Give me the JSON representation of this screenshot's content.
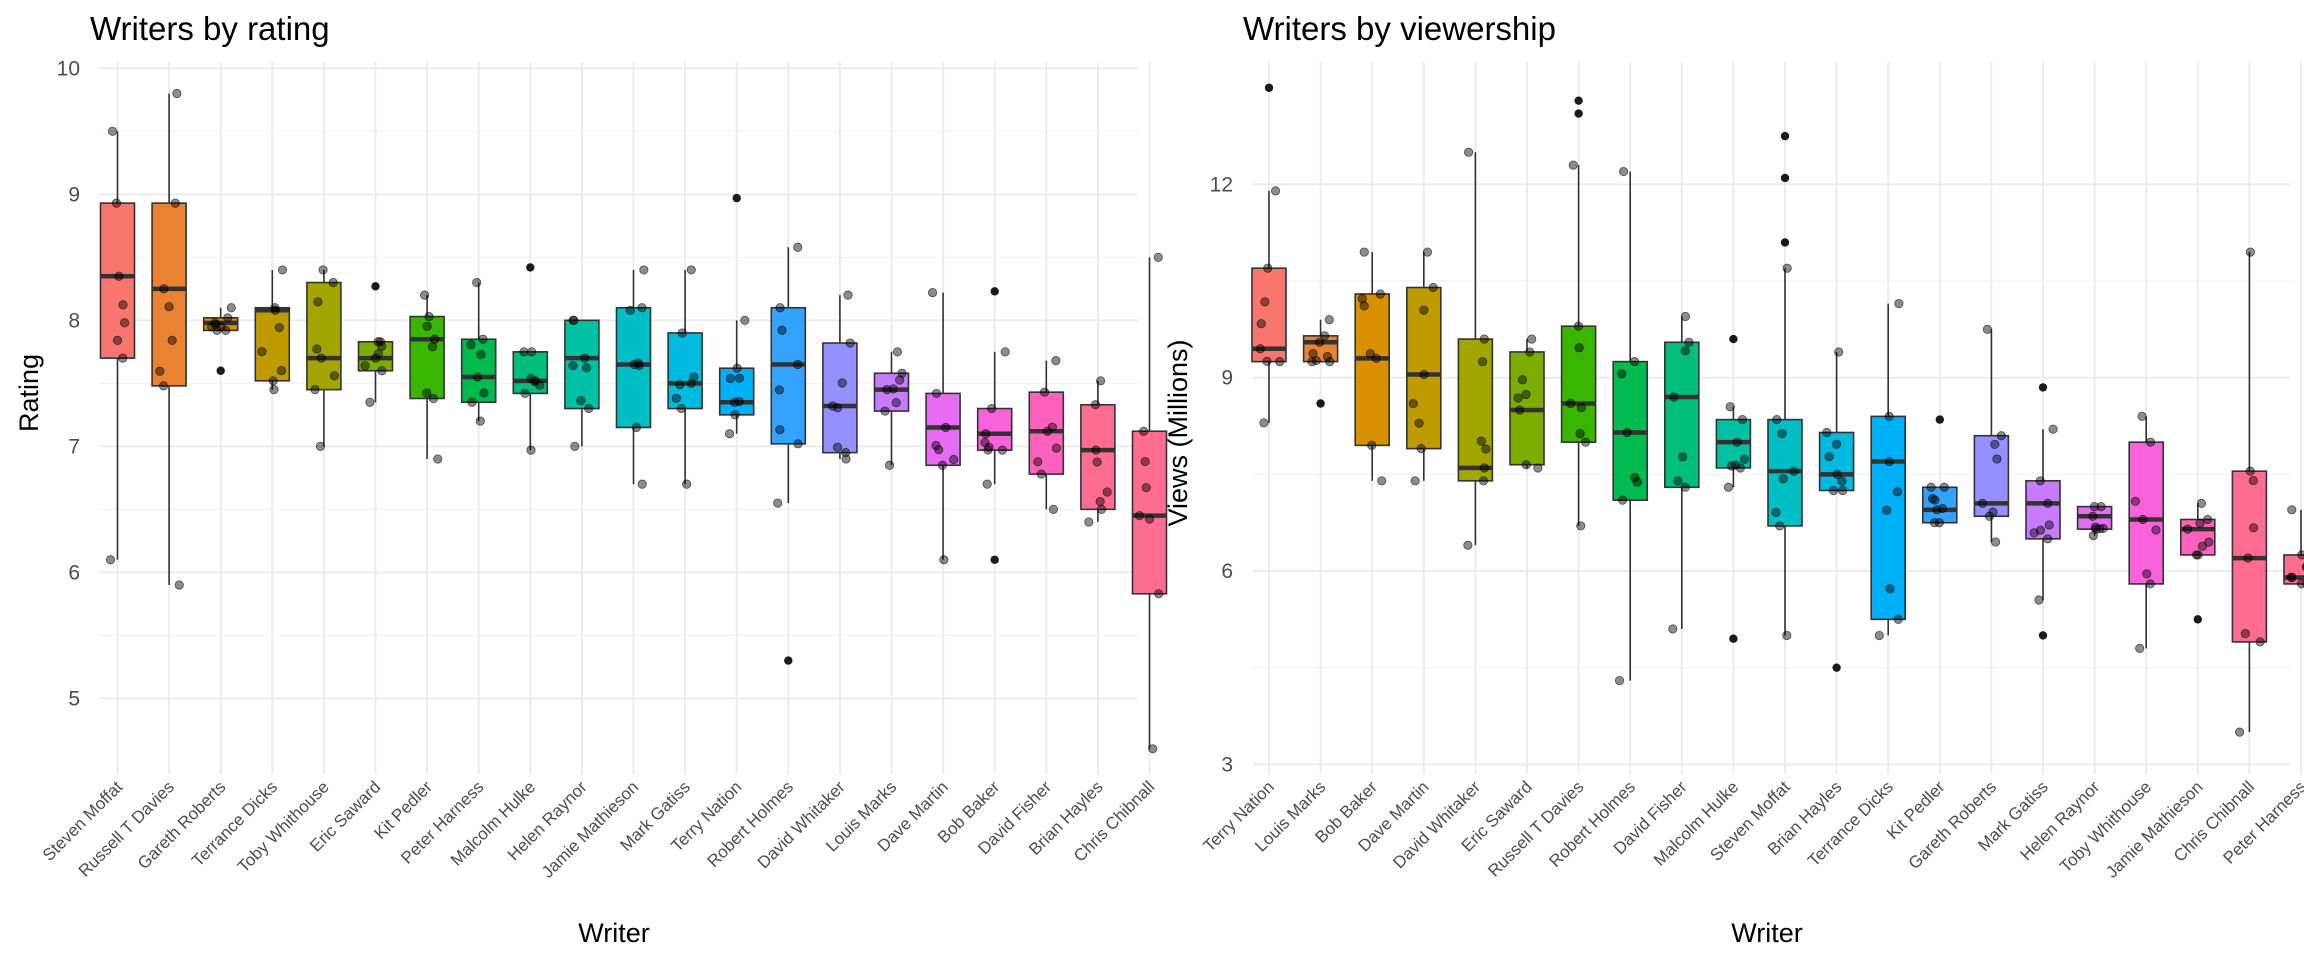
{
  "chart_data": [
    {
      "type": "box",
      "title": "Writers by rating",
      "xlabel": "Writer",
      "ylabel": "Rating",
      "ylim": [
        4.4,
        10.05
      ],
      "yticks": [
        5,
        6,
        7,
        8,
        9,
        10
      ],
      "grid": true,
      "legend": "none",
      "categories": [
        "Steven Moffat",
        "Russell T Davies",
        "Gareth Roberts",
        "Terrance Dicks",
        "Toby Whithouse",
        "Eric Saward",
        "Kit Pedler",
        "Peter Harness",
        "Malcolm Hulke",
        "Helen Raynor",
        "Jamie Mathieson",
        "Mark Gatiss",
        "Terry Nation",
        "Robert Holmes",
        "David Whitaker",
        "Louis Marks",
        "Dave Martin",
        "Bob Baker",
        "David Fisher",
        "Brian Hayles",
        "Chris Chibnall"
      ],
      "colors": [
        "#F8766D",
        "#EA8331",
        "#D89000",
        "#C09B00",
        "#A3A500",
        "#7CAE00",
        "#39B600",
        "#00BB4E",
        "#00BF7D",
        "#00C1A3",
        "#00BFC4",
        "#00BAE0",
        "#00B0F6",
        "#35A2FF",
        "#9590FF",
        "#C77CFF",
        "#E76BF3",
        "#FA62DB",
        "#FF62BC",
        "#FF6C91",
        "#FF6C91"
      ],
      "boxes": [
        {
          "min": 6.1,
          "q1": 7.7,
          "median": 8.35,
          "q3": 8.93,
          "max": 9.5,
          "outliers": []
        },
        {
          "min": 5.9,
          "q1": 7.48,
          "median": 8.25,
          "q3": 8.93,
          "max": 9.8,
          "outliers": []
        },
        {
          "min": 7.92,
          "q1": 7.92,
          "median": 7.98,
          "q3": 8.02,
          "max": 8.1,
          "outliers": [
            7.6
          ]
        },
        {
          "min": 7.45,
          "q1": 7.52,
          "median": 8.08,
          "q3": 8.1,
          "max": 8.4,
          "outliers": []
        },
        {
          "min": 7.0,
          "q1": 7.45,
          "median": 7.7,
          "q3": 8.3,
          "max": 8.4,
          "outliers": []
        },
        {
          "min": 7.35,
          "q1": 7.6,
          "median": 7.7,
          "q3": 7.83,
          "max": 7.83,
          "outliers": [
            8.27
          ]
        },
        {
          "min": 6.9,
          "q1": 7.38,
          "median": 7.85,
          "q3": 8.03,
          "max": 8.2,
          "outliers": []
        },
        {
          "min": 7.2,
          "q1": 7.35,
          "median": 7.55,
          "q3": 7.85,
          "max": 8.3,
          "outliers": []
        },
        {
          "min": 6.97,
          "q1": 7.42,
          "median": 7.52,
          "q3": 7.75,
          "max": 7.75,
          "outliers": [
            8.42
          ]
        },
        {
          "min": 7.0,
          "q1": 7.3,
          "median": 7.7,
          "q3": 8.0,
          "max": 8.0,
          "outliers": []
        },
        {
          "min": 6.7,
          "q1": 7.15,
          "median": 7.65,
          "q3": 8.1,
          "max": 8.4,
          "outliers": []
        },
        {
          "min": 6.7,
          "q1": 7.3,
          "median": 7.5,
          "q3": 7.9,
          "max": 8.4,
          "outliers": []
        },
        {
          "min": 7.1,
          "q1": 7.25,
          "median": 7.35,
          "q3": 7.62,
          "max": 8.0,
          "outliers": [
            8.97
          ]
        },
        {
          "min": 6.55,
          "q1": 7.02,
          "median": 7.65,
          "q3": 8.1,
          "max": 8.58,
          "outliers": [
            5.3
          ]
        },
        {
          "min": 6.9,
          "q1": 6.95,
          "median": 7.32,
          "q3": 7.82,
          "max": 8.2,
          "outliers": []
        },
        {
          "min": 6.85,
          "q1": 7.28,
          "median": 7.45,
          "q3": 7.58,
          "max": 7.75,
          "outliers": []
        },
        {
          "min": 6.1,
          "q1": 6.85,
          "median": 7.15,
          "q3": 7.42,
          "max": 8.22,
          "outliers": []
        },
        {
          "min": 6.7,
          "q1": 6.97,
          "median": 7.1,
          "q3": 7.3,
          "max": 7.75,
          "outliers": [
            8.23,
            6.1
          ]
        },
        {
          "min": 6.5,
          "q1": 6.78,
          "median": 7.12,
          "q3": 7.43,
          "max": 7.68,
          "outliers": []
        },
        {
          "min": 6.4,
          "q1": 6.5,
          "median": 6.97,
          "q3": 7.33,
          "max": 7.52,
          "outliers": []
        },
        {
          "min": 4.6,
          "q1": 5.83,
          "median": 6.45,
          "q3": 7.12,
          "max": 8.5,
          "outliers": []
        }
      ]
    },
    {
      "type": "box",
      "title": "Writers by viewership",
      "xlabel": "Writer",
      "ylabel": "Views (Millions)",
      "ylim": [
        2.85,
        13.9
      ],
      "yticks": [
        3,
        6,
        9,
        12
      ],
      "grid": true,
      "legend": "none",
      "categories": [
        "Terry Nation",
        "Louis Marks",
        "Bob Baker",
        "Dave Martin",
        "David Whitaker",
        "Eric Saward",
        "Russell T Davies",
        "Robert Holmes",
        "David Fisher",
        "Malcolm Hulke",
        "Steven Moffat",
        "Brian Hayles",
        "Terrance Dicks",
        "Kit Pedler",
        "Gareth Roberts",
        "Mark Gatiss",
        "Helen Raynor",
        "Toby Whithouse",
        "Jamie Mathieson",
        "Chris Chibnall",
        "Peter Harness"
      ],
      "colors": [
        "#F8766D",
        "#EA8331",
        "#D89000",
        "#C09B00",
        "#A3A500",
        "#7CAE00",
        "#39B600",
        "#00BB4E",
        "#00BF7D",
        "#00C1A3",
        "#00BFC4",
        "#00BAE0",
        "#00B0F6",
        "#35A2FF",
        "#9590FF",
        "#C77CFF",
        "#E76BF3",
        "#FA62DB",
        "#FF62BC",
        "#FF6C91",
        "#FF6C91"
      ],
      "boxes": [
        {
          "min": 8.3,
          "q1": 9.25,
          "median": 9.45,
          "q3": 10.7,
          "max": 11.9,
          "outliers": [
            13.5
          ]
        },
        {
          "min": 9.25,
          "q1": 9.25,
          "median": 9.55,
          "q3": 9.65,
          "max": 9.9,
          "outliers": [
            8.6
          ]
        },
        {
          "min": 7.4,
          "q1": 7.95,
          "median": 9.3,
          "q3": 10.3,
          "max": 10.95,
          "outliers": []
        },
        {
          "min": 7.4,
          "q1": 7.9,
          "median": 9.05,
          "q3": 10.4,
          "max": 10.95,
          "outliers": []
        },
        {
          "min": 6.4,
          "q1": 7.4,
          "median": 7.6,
          "q3": 9.6,
          "max": 12.5,
          "outliers": []
        },
        {
          "min": 7.6,
          "q1": 7.65,
          "median": 8.5,
          "q3": 9.4,
          "max": 9.6,
          "outliers": []
        },
        {
          "min": 6.7,
          "q1": 8.0,
          "median": 8.6,
          "q3": 9.8,
          "max": 12.3,
          "outliers": [
            13.3,
            13.1
          ]
        },
        {
          "min": 4.3,
          "q1": 7.1,
          "median": 8.15,
          "q3": 9.25,
          "max": 12.2,
          "outliers": []
        },
        {
          "min": 5.1,
          "q1": 7.3,
          "median": 8.7,
          "q3": 9.55,
          "max": 9.95,
          "outliers": []
        },
        {
          "min": 7.3,
          "q1": 7.6,
          "median": 8.0,
          "q3": 8.35,
          "max": 8.55,
          "outliers": [
            9.6,
            4.95
          ]
        },
        {
          "min": 5.0,
          "q1": 6.7,
          "median": 7.55,
          "q3": 8.35,
          "max": 10.7,
          "outliers": [
            12.75,
            12.1,
            11.1
          ]
        },
        {
          "min": 7.25,
          "q1": 7.25,
          "median": 7.5,
          "q3": 8.15,
          "max": 9.4,
          "outliers": [
            4.5
          ]
        },
        {
          "min": 5.0,
          "q1": 5.25,
          "median": 7.7,
          "q3": 8.4,
          "max": 10.15,
          "outliers": []
        },
        {
          "min": 6.75,
          "q1": 6.75,
          "median": 6.95,
          "q3": 7.3,
          "max": 7.3,
          "outliers": [
            8.35
          ]
        },
        {
          "min": 6.45,
          "q1": 6.85,
          "median": 7.05,
          "q3": 8.1,
          "max": 9.75,
          "outliers": []
        },
        {
          "min": 5.55,
          "q1": 6.5,
          "median": 7.05,
          "q3": 7.4,
          "max": 8.2,
          "outliers": [
            8.85,
            5.0
          ]
        },
        {
          "min": 6.55,
          "q1": 6.65,
          "median": 6.85,
          "q3": 7.0,
          "max": 7.0,
          "outliers": []
        },
        {
          "min": 4.8,
          "q1": 5.8,
          "median": 6.8,
          "q3": 8.0,
          "max": 8.4,
          "outliers": []
        },
        {
          "min": 6.25,
          "q1": 6.25,
          "median": 6.65,
          "q3": 6.8,
          "max": 7.05,
          "outliers": [
            5.25
          ]
        },
        {
          "min": 3.5,
          "q1": 4.9,
          "median": 6.2,
          "q3": 7.55,
          "max": 10.95,
          "outliers": []
        },
        {
          "min": 5.8,
          "q1": 5.8,
          "median": 5.9,
          "q3": 6.25,
          "max": 6.95,
          "outliers": []
        }
      ]
    }
  ]
}
